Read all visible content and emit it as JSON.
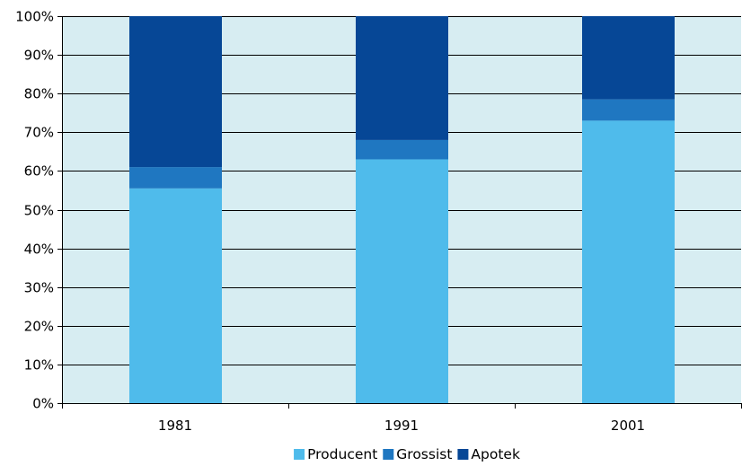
{
  "chart_data": {
    "type": "bar",
    "stacked": true,
    "percent_stacked": true,
    "categories": [
      "1981",
      "1991",
      "2001"
    ],
    "series": [
      {
        "name": "Producent",
        "values": [
          55.5,
          63,
          73
        ],
        "color": "#4fbbeb"
      },
      {
        "name": "Grossist",
        "values": [
          5.5,
          5,
          5.5
        ],
        "color": "#1f77c1"
      },
      {
        "name": "Apotek",
        "values": [
          39,
          32,
          21.5
        ],
        "color": "#064796"
      }
    ],
    "title": "",
    "xlabel": "",
    "ylabel": "",
    "ylim": [
      0,
      100
    ],
    "yticks": [
      "0%",
      "10%",
      "20%",
      "30%",
      "40%",
      "50%",
      "60%",
      "70%",
      "80%",
      "90%",
      "100%"
    ],
    "grid": true,
    "plot_background": "#d7edf2",
    "legend_position": "bottom"
  }
}
